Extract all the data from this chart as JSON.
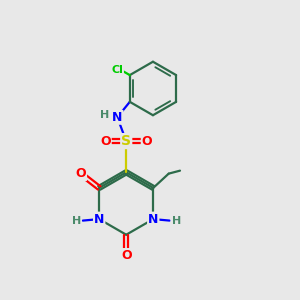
{
  "bg_color": "#e8e8e8",
  "colors": {
    "C": "#2d6b4a",
    "N": "#0000ff",
    "O": "#ff0000",
    "S": "#cccc00",
    "Cl": "#00cc00",
    "H": "#4a8a6a"
  },
  "lw": 1.6,
  "fs": 9,
  "fs_small": 8
}
